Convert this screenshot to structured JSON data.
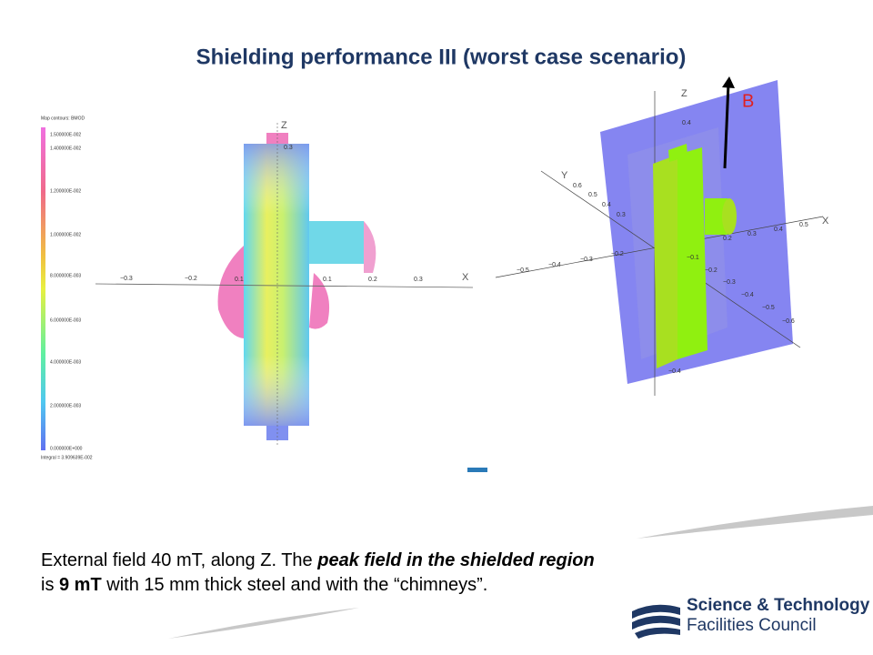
{
  "title": "Shielding performance III (worst case scenario)",
  "left_plot": {
    "legend_title": "Map contours: BMOD",
    "colorbar_ticks": [
      "1.500000E-002",
      "1.400000E-002",
      "1.200000E-002",
      "1.000000E-002",
      "8.000000E-003",
      "6.000000E-003",
      "4.000000E-003",
      "2.000000E-003",
      "0.000000E+000"
    ],
    "integral": "Integral = 3.909639E-002",
    "x_ticks": [
      "−0.3",
      "−0.2",
      "0.1",
      "0.1",
      "0.2",
      "0.3"
    ],
    "x_label": "X",
    "z_label": "Z",
    "z_tick": "0.3"
  },
  "right_plot": {
    "field_label": "B",
    "z_label": "Z",
    "y_label": "Y",
    "x_label": "X",
    "z_ticks": [
      "0.4",
      "−0.4"
    ],
    "y_ticks": [
      "0.6",
      "0.5",
      "0.4",
      "0.3"
    ],
    "x_ticks": [
      "0.2",
      "0.3",
      "0.4",
      "0.5"
    ],
    "neg_x_ticks": [
      "−0.5",
      "−0.4",
      "−0.3",
      "−0.2"
    ],
    "neg_y_ticks": [
      "−0.1",
      "−0.2",
      "−0.3",
      "−0.4",
      "−0.5",
      "−0.6"
    ]
  },
  "body": {
    "line1": [
      "External field 40 mT, along Z. The ",
      "peak field in the shielded region"
    ],
    "line2": [
      "is ",
      "9 mT",
      " with 15 mm thick steel and with the “chimneys”."
    ]
  },
  "logo": {
    "line1": "Science & Technology",
    "line2": "Facilities Council"
  }
}
